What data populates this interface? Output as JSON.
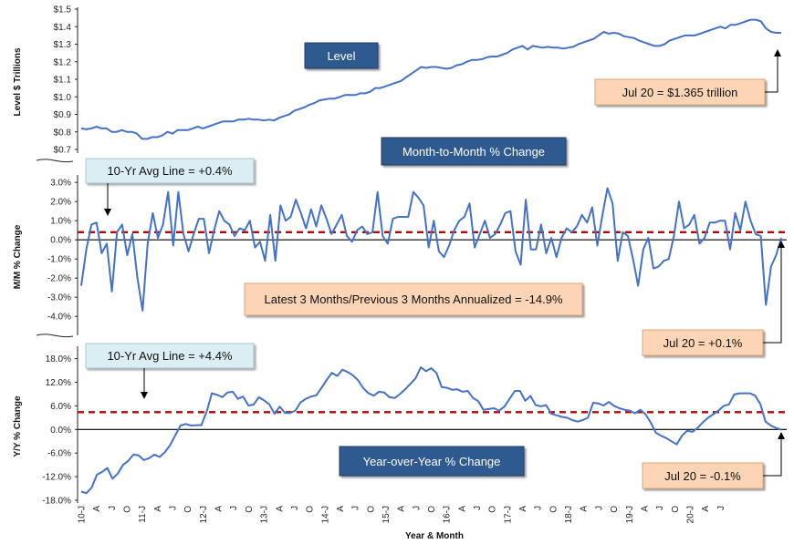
{
  "colors": {
    "line": "#4472c4",
    "avg": "#c00000",
    "dark_box": "#2e5a8f",
    "light_box": "#dbeef4",
    "peach_box": "#fbd5b5"
  },
  "xaxis": {
    "label": "Year & Month",
    "tick_labels": [
      "10-J",
      "A",
      "J",
      "O",
      "11-J",
      "A",
      "J",
      "O",
      "12-J",
      "A",
      "J",
      "O",
      "13-J",
      "A",
      "J",
      "O",
      "14-J",
      "A",
      "J",
      "O",
      "15-J",
      "A",
      "J",
      "O",
      "16-J",
      "A",
      "J",
      "O",
      "17-J",
      "A",
      "J",
      "O",
      "18-J",
      "A",
      "J",
      "O",
      "19-J",
      "A",
      "J",
      "O",
      "20-J",
      "A",
      "J"
    ]
  },
  "chart_data": [
    {
      "type": "line",
      "ylabel": "Level $ Trillions",
      "title": "Level",
      "ylim": [
        0.7,
        1.5
      ],
      "yticks": [
        {
          "v": 1.5,
          "t": "$1.5"
        },
        {
          "v": 1.4,
          "t": "$1.4"
        },
        {
          "v": 1.3,
          "t": "$1.3"
        },
        {
          "v": 1.2,
          "t": "$1.2"
        },
        {
          "v": 1.1,
          "t": "$1.1"
        },
        {
          "v": 1.0,
          "t": "$1.0"
        },
        {
          "v": 0.9,
          "t": "$0.9"
        },
        {
          "v": 0.8,
          "t": "$0.8"
        },
        {
          "v": 0.7,
          "t": "$0.7"
        }
      ],
      "annotation": "Jul 20 = $1.365 trillion",
      "values": [
        0.82,
        0.815,
        0.82,
        0.83,
        0.82,
        0.82,
        0.8,
        0.8,
        0.81,
        0.8,
        0.8,
        0.79,
        0.76,
        0.76,
        0.77,
        0.77,
        0.78,
        0.8,
        0.79,
        0.81,
        0.81,
        0.81,
        0.82,
        0.83,
        0.82,
        0.83,
        0.84,
        0.85,
        0.86,
        0.86,
        0.86,
        0.87,
        0.87,
        0.875,
        0.87,
        0.87,
        0.865,
        0.87,
        0.865,
        0.88,
        0.89,
        0.9,
        0.92,
        0.93,
        0.94,
        0.955,
        0.965,
        0.98,
        0.985,
        0.99,
        0.99,
        1.0,
        1.01,
        1.01,
        1.01,
        1.02,
        1.02,
        1.03,
        1.05,
        1.05,
        1.06,
        1.07,
        1.08,
        1.09,
        1.11,
        1.13,
        1.15,
        1.17,
        1.165,
        1.17,
        1.17,
        1.165,
        1.16,
        1.165,
        1.18,
        1.185,
        1.2,
        1.21,
        1.21,
        1.215,
        1.225,
        1.23,
        1.23,
        1.24,
        1.25,
        1.27,
        1.28,
        1.29,
        1.27,
        1.29,
        1.285,
        1.28,
        1.285,
        1.28,
        1.28,
        1.275,
        1.28,
        1.285,
        1.3,
        1.31,
        1.32,
        1.33,
        1.35,
        1.37,
        1.36,
        1.365,
        1.36,
        1.345,
        1.34,
        1.335,
        1.32,
        1.31,
        1.3,
        1.29,
        1.29,
        1.3,
        1.32,
        1.33,
        1.34,
        1.35,
        1.35,
        1.35,
        1.36,
        1.37,
        1.38,
        1.39,
        1.4,
        1.39,
        1.41,
        1.41,
        1.42,
        1.43,
        1.44,
        1.44,
        1.43,
        1.39,
        1.37,
        1.365,
        1.365
      ]
    },
    {
      "type": "line",
      "ylabel": "M/M % Change",
      "title": "Month-to-Month % Change",
      "ylim": [
        -4.8,
        3.2
      ],
      "yticks": [
        {
          "v": 3.0,
          "t": "3.0%"
        },
        {
          "v": 2.0,
          "t": "2.0%"
        },
        {
          "v": 1.0,
          "t": "1.0%"
        },
        {
          "v": 0.0,
          "t": "0.0%"
        },
        {
          "v": -1.0,
          "t": "-1.0%"
        },
        {
          "v": -2.0,
          "t": "-2.0%"
        },
        {
          "v": -3.0,
          "t": "-3.0%"
        },
        {
          "v": -4.0,
          "t": "-4.0%"
        }
      ],
      "avg_line": 0.4,
      "avg_label": "10-Yr Avg Line = +0.4%",
      "annotation_center": "Latest 3 Months/Previous 3 Months Annualized = -14.9%",
      "annotation": "Jul 20 = +0.1%",
      "values": [
        -2.4,
        -0.5,
        0.8,
        0.9,
        -0.7,
        -0.2,
        -2.7,
        0.4,
        0.8,
        -0.8,
        0.3,
        -2.0,
        -3.7,
        -0.2,
        1.4,
        0.1,
        0.8,
        2.5,
        -0.3,
        2.5,
        0.3,
        -0.6,
        0.3,
        1.1,
        1.1,
        -0.7,
        0.5,
        1.5,
        1.0,
        0.8,
        0.2,
        0.6,
        0.5,
        1.0,
        -0.4,
        -0.1,
        -1.1,
        1.3,
        -1.1,
        1.8,
        1.0,
        1.2,
        2.1,
        1.4,
        0.6,
        1.6,
        0.7,
        1.8,
        1.1,
        0.3,
        0.8,
        1.3,
        0.2,
        -0.1,
        0.5,
        0.7,
        0.3,
        0.4,
        2.5,
        0.2,
        -0.2,
        1.1,
        1.2,
        1.2,
        1.2,
        2.5,
        2.2,
        1.8,
        -0.4,
        1.0,
        -0.6,
        -0.9,
        -0.3,
        0.5,
        1.0,
        1.2,
        1.9,
        -0.4,
        0.3,
        1.0,
        0.1,
        0.3,
        0.8,
        1.4,
        1.5,
        -0.6,
        -1.3,
        2.1,
        -0.5,
        -0.5,
        0.8,
        -0.7,
        0.1,
        -0.9,
        0.1,
        0.6,
        0.4,
        0.7,
        1.3,
        0.9,
        1.7,
        -0.3,
        1.3,
        2.7,
        1.9,
        -1.1,
        0.4,
        0.2,
        -1.0,
        -2.4,
        -0.5,
        0.1,
        -1.5,
        -1.4,
        -1.1,
        -1.0,
        0.2,
        2.0,
        0.6,
        0.8,
        1.3,
        -0.2,
        0.1,
        0.9,
        0.9,
        1.0,
        1.0,
        -0.5,
        1.4,
        0.5,
        2.0,
        1.0,
        0.3,
        0.2,
        -3.4,
        -1.4,
        -0.8,
        0.1
      ]
    },
    {
      "type": "line",
      "ylabel": "Y/Y % Change",
      "title": "Year-over-Year % Change",
      "ylim": [
        -18.0,
        20.0
      ],
      "yticks": [
        {
          "v": 18,
          "t": "18.0%"
        },
        {
          "v": 12,
          "t": "12.0%"
        },
        {
          "v": 6,
          "t": "6.0%"
        },
        {
          "v": 0,
          "t": "0.0%"
        },
        {
          "v": -6,
          "t": "-6.0%"
        },
        {
          "v": -12,
          "t": "-12.0%"
        },
        {
          "v": -18,
          "t": "-18.0%"
        }
      ],
      "avg_line": 4.4,
      "avg_label": "10-Yr Avg Line = +4.4%",
      "annotation": "Jul 20 = -0.1%",
      "values": [
        -15.8,
        -16.2,
        -14.8,
        -11.5,
        -10.8,
        -9.8,
        -12.5,
        -11.2,
        -9.0,
        -8.0,
        -6.4,
        -6.6,
        -7.8,
        -7.3,
        -6.4,
        -7.0,
        -5.8,
        -4.0,
        -1.5,
        1.0,
        1.4,
        1.0,
        1.1,
        1.1,
        4.5,
        9.2,
        8.8,
        8.2,
        9.4,
        9.6,
        7.8,
        8.4,
        6.1,
        6.3,
        8.2,
        7.4,
        6.4,
        4.0,
        5.8,
        4.2,
        4.2,
        4.8,
        6.9,
        7.8,
        8.4,
        8.7,
        10.6,
        12.6,
        14.4,
        13.6,
        15.2,
        14.6,
        13.8,
        12.5,
        10.5,
        9.2,
        8.6,
        9.6,
        9.4,
        8.2,
        8.0,
        9.0,
        10.2,
        11.6,
        13.0,
        15.8,
        14.8,
        15.6,
        14.4,
        10.8,
        10.6,
        10.1,
        10.2,
        9.6,
        9.8,
        8.0,
        7.2,
        5.0,
        5.2,
        5.4,
        4.8,
        5.8,
        7.8,
        9.8,
        9.8,
        7.3,
        8.5,
        6.2,
        5.9,
        6.2,
        4.0,
        3.6,
        3.2,
        3.0,
        2.4,
        2.0,
        2.4,
        3.0,
        6.8,
        6.6,
        6.1,
        7.0,
        6.0,
        5.4,
        5.0,
        4.8,
        4.1,
        5.0,
        3.9,
        1.8,
        -0.8,
        -1.6,
        -2.2,
        -3.0,
        -3.8,
        -1.6,
        -0.3,
        -0.6,
        0.4,
        1.8,
        3.0,
        3.9,
        4.8,
        6.0,
        6.4,
        8.9,
        9.2,
        9.2,
        9.2,
        8.6,
        6.5,
        2.0,
        1.0,
        0.4,
        -0.1
      ]
    }
  ]
}
